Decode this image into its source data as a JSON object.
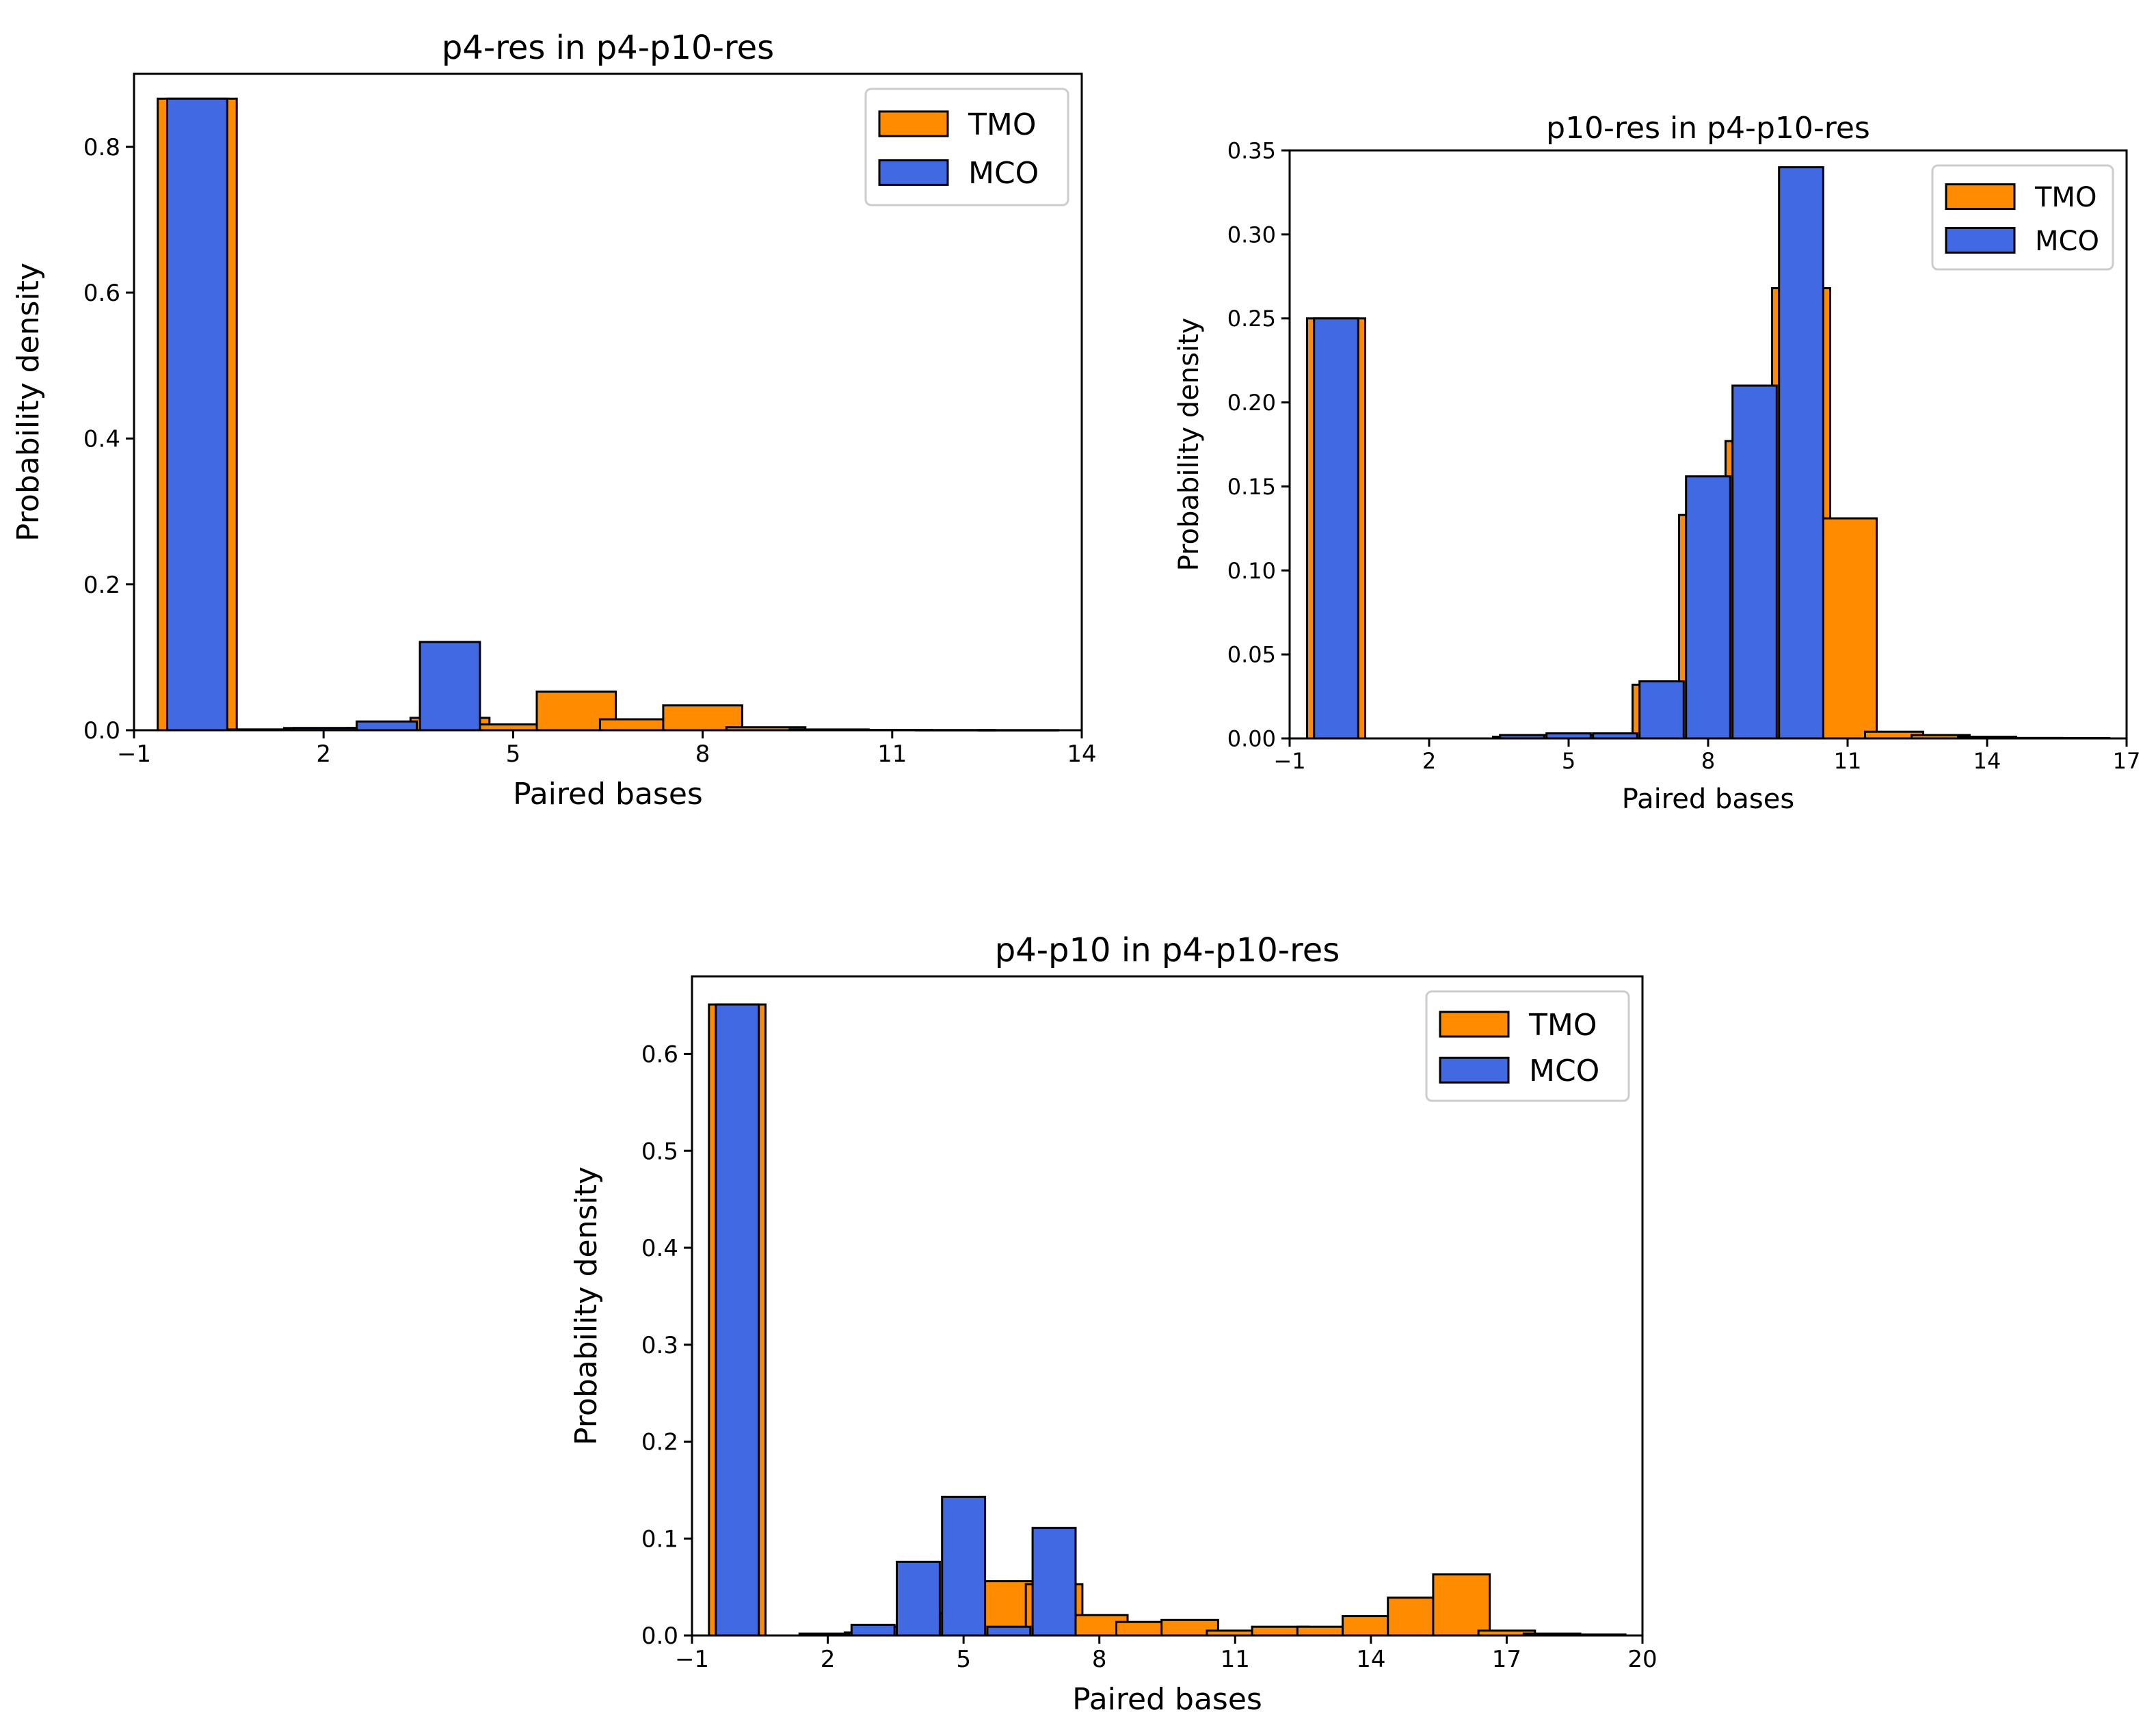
{
  "colors": {
    "tmo": "#ff8c00",
    "mco": "#4169e1",
    "edge": "#000000"
  },
  "chart_data": [
    {
      "type": "bar",
      "title": "p4-res in p4-p10-res",
      "xlabel": "Paired bases",
      "ylabel": "Probability density",
      "xlim": [
        -1,
        14
      ],
      "ylim": [
        0,
        0.9
      ],
      "xticks": [
        -1,
        2,
        5,
        8,
        11,
        14
      ],
      "xtick_labels": [
        "−1",
        "2",
        "5",
        "8",
        "11",
        "14"
      ],
      "yticks": [
        0.0,
        0.2,
        0.4,
        0.6,
        0.8
      ],
      "ytick_labels": [
        "0.0",
        "0.2",
        "0.4",
        "0.6",
        "0.8"
      ],
      "legend": {
        "position": "top-right",
        "entries": [
          "TMO",
          "MCO"
        ]
      },
      "x": [
        0,
        1,
        2,
        3,
        4,
        5,
        6,
        7,
        8,
        9,
        10,
        11,
        12,
        13
      ],
      "series": [
        {
          "name": "TMO",
          "values": [
            0.866,
            0.001,
            0.003,
            0.003,
            0.017,
            0.008,
            0.053,
            0.015,
            0.034,
            0.004,
            0.001,
            0.0005,
            0.0003,
            0.0002
          ]
        },
        {
          "name": "MCO",
          "values": [
            0.866,
            0.001,
            0.003,
            0.012,
            0.121,
            0.0,
            0.0,
            0.0,
            0.0,
            0.0,
            0.0,
            0.0,
            0.0,
            0.0
          ]
        }
      ]
    },
    {
      "type": "bar",
      "title": "p10-res in p4-p10-res",
      "xlabel": "Paired bases",
      "ylabel": "Probability density",
      "xlim": [
        -1,
        17
      ],
      "ylim": [
        0,
        0.35
      ],
      "xticks": [
        -1,
        2,
        5,
        8,
        11,
        14,
        17
      ],
      "xtick_labels": [
        "−1",
        "2",
        "5",
        "8",
        "11",
        "14",
        "17"
      ],
      "yticks": [
        0.0,
        0.05,
        0.1,
        0.15,
        0.2,
        0.25,
        0.3,
        0.35
      ],
      "ytick_labels": [
        "0.00",
        "0.05",
        "0.10",
        "0.15",
        "0.20",
        "0.25",
        "0.30",
        "0.35"
      ],
      "legend": {
        "position": "top-right",
        "entries": [
          "TMO",
          "MCO"
        ]
      },
      "x": [
        0,
        1,
        2,
        3,
        4,
        5,
        6,
        7,
        8,
        9,
        10,
        11,
        12,
        13,
        14,
        15,
        16
      ],
      "series": [
        {
          "name": "TMO",
          "values": [
            0.25,
            0.0,
            0.0,
            0.0,
            0.001,
            0.002,
            0.002,
            0.032,
            0.133,
            0.177,
            0.268,
            0.131,
            0.004,
            0.002,
            0.001,
            0.0003,
            0.0002
          ]
        },
        {
          "name": "MCO",
          "values": [
            0.25,
            0.0,
            0.0,
            0.0,
            0.002,
            0.003,
            0.003,
            0.034,
            0.156,
            0.21,
            0.34,
            0.0,
            0.0,
            0.0,
            0.0,
            0.0,
            0.0
          ]
        }
      ]
    },
    {
      "type": "bar",
      "title": "p4-p10 in p4-p10-res",
      "xlabel": "Paired bases",
      "ylabel": "Probability density",
      "xlim": [
        -1,
        20
      ],
      "ylim": [
        0,
        0.68
      ],
      "xticks": [
        -1,
        2,
        5,
        8,
        11,
        14,
        17,
        20
      ],
      "xtick_labels": [
        "−1",
        "2",
        "5",
        "8",
        "11",
        "14",
        "17",
        "20"
      ],
      "yticks": [
        0.0,
        0.1,
        0.2,
        0.3,
        0.4,
        0.5,
        0.6
      ],
      "ytick_labels": [
        "0.0",
        "0.1",
        "0.2",
        "0.3",
        "0.4",
        "0.5",
        "0.6"
      ],
      "legend": {
        "position": "top-right",
        "entries": [
          "TMO",
          "MCO"
        ]
      },
      "x": [
        0,
        1,
        2,
        3,
        4,
        5,
        6,
        7,
        8,
        9,
        10,
        11,
        12,
        13,
        14,
        15,
        16,
        17,
        18,
        19
      ],
      "series": [
        {
          "name": "TMO",
          "values": [
            0.651,
            0.0,
            0.002,
            0.003,
            0.009,
            0.023,
            0.056,
            0.053,
            0.021,
            0.014,
            0.016,
            0.005,
            0.009,
            0.009,
            0.02,
            0.039,
            0.063,
            0.005,
            0.002,
            0.001
          ]
        },
        {
          "name": "MCO",
          "values": [
            0.651,
            0.0,
            0.001,
            0.011,
            0.076,
            0.143,
            0.009,
            0.111,
            0.0,
            0.0,
            0.0,
            0.0,
            0.0,
            0.0,
            0.0,
            0.0,
            0.0,
            0.0,
            0.0,
            0.0
          ]
        }
      ]
    }
  ]
}
